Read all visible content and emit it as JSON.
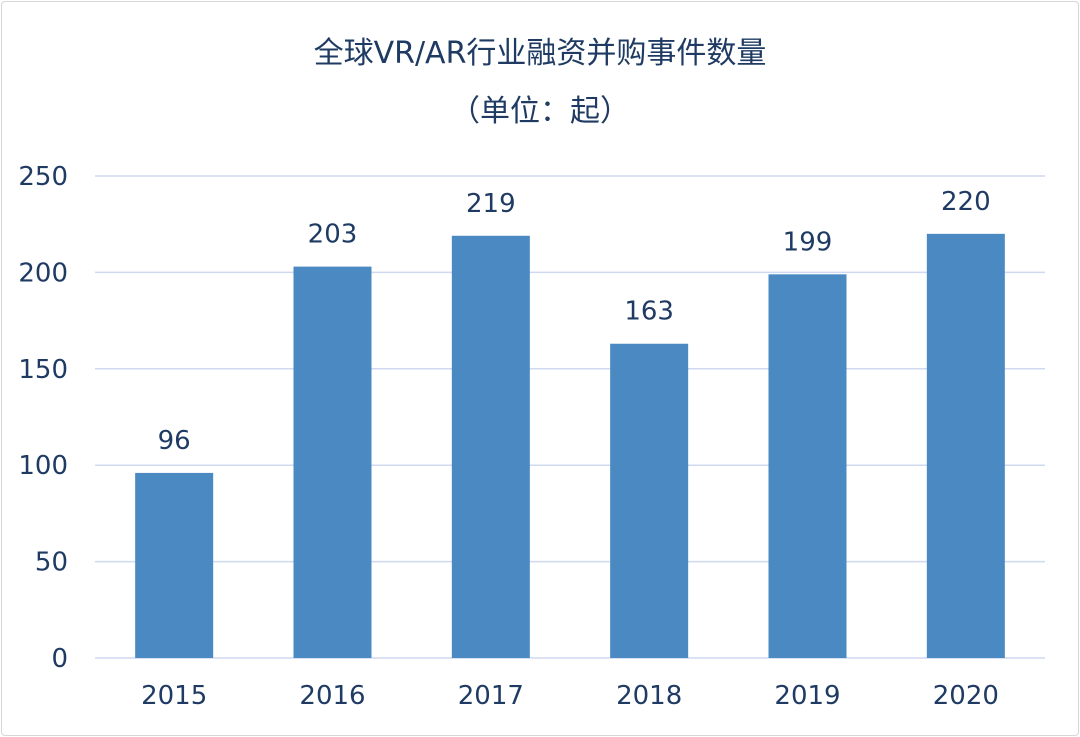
{
  "chart_data": {
    "type": "bar",
    "title": "全球VR/AR行业融资并购事件数量",
    "subtitle": "（单位：起）",
    "categories": [
      "2015",
      "2016",
      "2017",
      "2018",
      "2019",
      "2020"
    ],
    "values": [
      96,
      203,
      219,
      163,
      199,
      220
    ],
    "ylim": [
      0,
      250
    ],
    "yticks": [
      0,
      50,
      100,
      150,
      200,
      250
    ],
    "grid": true,
    "data_labels": true,
    "bar_color": "#4a89c2",
    "grid_color": "#cfd9ef",
    "text_color": "#1f3b63"
  }
}
